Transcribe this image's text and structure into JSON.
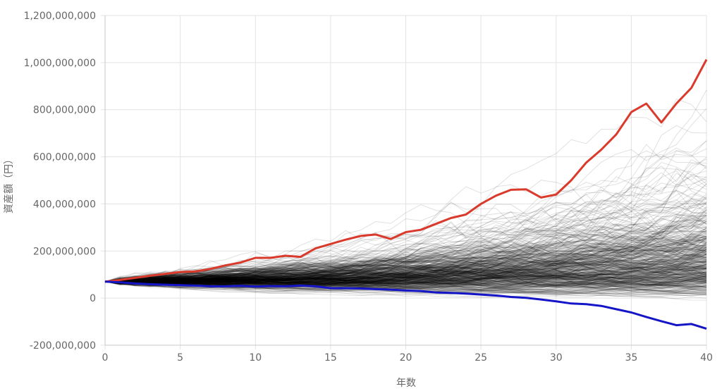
{
  "chart_data": {
    "type": "line",
    "xlabel": "年数",
    "ylabel": "資産額（円）",
    "xlim": [
      0,
      40
    ],
    "ylim": [
      -200000000,
      1200000000
    ],
    "x_ticks": [
      0,
      5,
      10,
      15,
      20,
      25,
      30,
      35,
      40
    ],
    "y_ticks": [
      -200000000,
      0,
      200000000,
      400000000,
      600000000,
      800000000,
      1000000000,
      1200000000
    ],
    "y_tick_labels": [
      "-200,000,000",
      "0",
      "200,000,000",
      "400,000,000",
      "600,000,000",
      "800,000,000",
      "1,000,000,000",
      "1,200,000,000"
    ],
    "x_tick_labels": [
      "0",
      "5",
      "10",
      "15",
      "20",
      "25",
      "30",
      "35",
      "40"
    ],
    "grid": true,
    "legend": "none",
    "simulation_paths": {
      "count": 500,
      "color": "#000000",
      "opacity": 0.12,
      "start_value": 70000000,
      "median_end_value": 215000000
    },
    "series": [
      {
        "color": "#d93a2b",
        "x": [
          0,
          1,
          2,
          3,
          4,
          5,
          6,
          7,
          8,
          9,
          10,
          11,
          12,
          13,
          14,
          15,
          16,
          17,
          18,
          19,
          20,
          21,
          22,
          23,
          24,
          25,
          26,
          27,
          28,
          29,
          30,
          31,
          32,
          33,
          34,
          35,
          36,
          37,
          38,
          39,
          40
        ],
        "values": [
          70000000,
          77000000,
          86000000,
          95000000,
          103000000,
          111000000,
          113000000,
          124000000,
          139000000,
          151000000,
          171000000,
          171000000,
          180000000,
          175000000,
          211000000,
          230000000,
          248000000,
          264000000,
          270000000,
          251000000,
          280000000,
          290000000,
          315000000,
          340000000,
          355000000,
          400000000,
          435000000,
          460000000,
          462000000,
          427000000,
          440000000,
          500000000,
          575000000,
          630000000,
          695000000,
          790000000,
          826000000,
          746000000,
          826000000,
          893000000,
          1013000000
        ]
      },
      {
        "color": "#1515c8",
        "x": [
          0,
          1,
          2,
          3,
          4,
          5,
          6,
          7,
          8,
          9,
          10,
          11,
          12,
          13,
          14,
          15,
          16,
          17,
          18,
          19,
          20,
          21,
          22,
          23,
          24,
          25,
          26,
          27,
          28,
          29,
          30,
          31,
          32,
          33,
          34,
          35,
          36,
          37,
          38,
          39,
          40
        ],
        "values": [
          70000000,
          67000000,
          62000000,
          59000000,
          57000000,
          55000000,
          53000000,
          50000000,
          50000000,
          52000000,
          49000000,
          51000000,
          50000000,
          53000000,
          50000000,
          42000000,
          42000000,
          41000000,
          38000000,
          36000000,
          32000000,
          30000000,
          24000000,
          22000000,
          19000000,
          15000000,
          11000000,
          5000000,
          1000000,
          -6000000,
          -14000000,
          -23000000,
          -26000000,
          -33000000,
          -47000000,
          -61000000,
          -80000000,
          -98000000,
          -115000000,
          -110000000,
          -130000000
        ]
      }
    ]
  }
}
